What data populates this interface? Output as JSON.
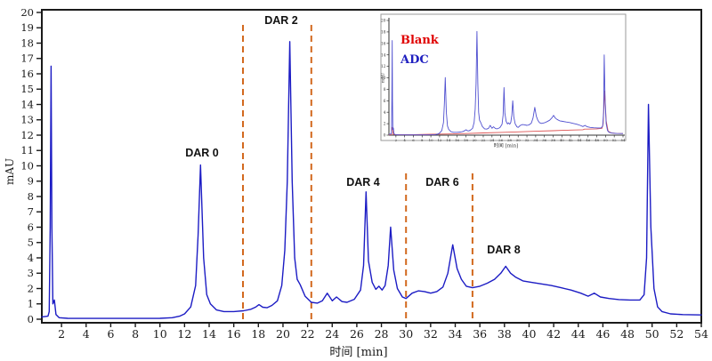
{
  "chart_data": {
    "type": "line",
    "title": "",
    "xlabel": "时间 [min]",
    "ylabel": "mAU",
    "xlim": [
      0.4,
      54
    ],
    "ylim": [
      0,
      20
    ],
    "grid": false,
    "x_ticks": [
      2,
      4,
      6,
      8,
      10,
      12,
      14,
      16,
      18,
      20,
      22,
      24,
      26,
      28,
      30,
      32,
      34,
      36,
      38,
      40,
      42,
      44,
      46,
      48,
      50,
      52,
      54
    ],
    "y_ticks": [
      0,
      1,
      2,
      3,
      4,
      5,
      6,
      7,
      8,
      9,
      10,
      11,
      12,
      13,
      14,
      15,
      16,
      17,
      18,
      19,
      20
    ],
    "frame_color": "#1a1a1a",
    "divider_lines": {
      "color": "#d2691e",
      "positions_min": [
        16.75,
        22.3,
        30.0,
        35.4
      ],
      "full_height": [
        true,
        true,
        false,
        false
      ]
    },
    "annotations": [
      {
        "label": "DAR 0",
        "t_min": 13.3,
        "peak_mau": 10.0
      },
      {
        "label": "DAR 2",
        "t_min": 20.55,
        "peak_mau": 18.1
      },
      {
        "label": "DAR 4",
        "t_min": 26.75,
        "peak_mau": 8.3
      },
      {
        "label": "DAR 6",
        "t_min": 33.8,
        "peak_mau": 4.85
      },
      {
        "label": "DAR 8",
        "t_min": 38.1,
        "peak_mau": 3.45
      }
    ],
    "series": [
      {
        "name": "ADC",
        "color": "#1c1cc4",
        "points": [
          [
            0.4,
            0.15
          ],
          [
            0.9,
            0.2
          ],
          [
            1.0,
            0.5
          ],
          [
            1.08,
            6.0
          ],
          [
            1.15,
            16.5
          ],
          [
            1.22,
            6.0
          ],
          [
            1.3,
            1.0
          ],
          [
            1.42,
            1.25
          ],
          [
            1.55,
            0.3
          ],
          [
            1.8,
            0.1
          ],
          [
            2.5,
            0.06
          ],
          [
            4,
            0.05
          ],
          [
            6,
            0.05
          ],
          [
            8,
            0.05
          ],
          [
            10,
            0.06
          ],
          [
            11,
            0.1
          ],
          [
            11.6,
            0.2
          ],
          [
            12.0,
            0.35
          ],
          [
            12.5,
            0.8
          ],
          [
            12.9,
            2.2
          ],
          [
            13.1,
            5.5
          ],
          [
            13.3,
            10.05
          ],
          [
            13.55,
            4.0
          ],
          [
            13.8,
            1.6
          ],
          [
            14.1,
            1.0
          ],
          [
            14.6,
            0.6
          ],
          [
            15.2,
            0.5
          ],
          [
            16.0,
            0.5
          ],
          [
            16.8,
            0.55
          ],
          [
            17.4,
            0.65
          ],
          [
            17.8,
            0.8
          ],
          [
            18.05,
            0.95
          ],
          [
            18.35,
            0.78
          ],
          [
            18.7,
            0.75
          ],
          [
            19.1,
            0.9
          ],
          [
            19.55,
            1.2
          ],
          [
            19.9,
            2.2
          ],
          [
            20.15,
            4.5
          ],
          [
            20.35,
            9.0
          ],
          [
            20.55,
            18.1
          ],
          [
            20.75,
            9.0
          ],
          [
            20.95,
            4.0
          ],
          [
            21.15,
            2.6
          ],
          [
            21.4,
            2.25
          ],
          [
            21.8,
            1.5
          ],
          [
            22.3,
            1.1
          ],
          [
            22.8,
            1.05
          ],
          [
            23.2,
            1.2
          ],
          [
            23.6,
            1.7
          ],
          [
            24.0,
            1.2
          ],
          [
            24.35,
            1.45
          ],
          [
            24.8,
            1.15
          ],
          [
            25.2,
            1.1
          ],
          [
            25.8,
            1.3
          ],
          [
            26.3,
            1.9
          ],
          [
            26.55,
            3.5
          ],
          [
            26.75,
            8.3
          ],
          [
            26.95,
            3.8
          ],
          [
            27.25,
            2.4
          ],
          [
            27.55,
            1.95
          ],
          [
            27.8,
            2.15
          ],
          [
            28.05,
            1.9
          ],
          [
            28.3,
            2.2
          ],
          [
            28.55,
            3.5
          ],
          [
            28.75,
            6.0
          ],
          [
            29.0,
            3.2
          ],
          [
            29.3,
            2.0
          ],
          [
            29.7,
            1.45
          ],
          [
            30.0,
            1.35
          ],
          [
            30.5,
            1.7
          ],
          [
            31.0,
            1.85
          ],
          [
            31.5,
            1.8
          ],
          [
            32.0,
            1.7
          ],
          [
            32.5,
            1.8
          ],
          [
            33.0,
            2.1
          ],
          [
            33.4,
            3.0
          ],
          [
            33.8,
            4.85
          ],
          [
            34.15,
            3.3
          ],
          [
            34.5,
            2.6
          ],
          [
            34.9,
            2.15
          ],
          [
            35.4,
            2.05
          ],
          [
            36.0,
            2.15
          ],
          [
            36.6,
            2.35
          ],
          [
            37.2,
            2.6
          ],
          [
            37.7,
            3.0
          ],
          [
            38.1,
            3.45
          ],
          [
            38.5,
            3.0
          ],
          [
            38.9,
            2.75
          ],
          [
            39.5,
            2.5
          ],
          [
            40.2,
            2.4
          ],
          [
            41.0,
            2.3
          ],
          [
            41.8,
            2.2
          ],
          [
            42.6,
            2.05
          ],
          [
            43.4,
            1.9
          ],
          [
            44.2,
            1.7
          ],
          [
            44.8,
            1.5
          ],
          [
            45.3,
            1.7
          ],
          [
            45.8,
            1.45
          ],
          [
            46.5,
            1.35
          ],
          [
            47.3,
            1.28
          ],
          [
            48.2,
            1.25
          ],
          [
            49.0,
            1.25
          ],
          [
            49.35,
            1.6
          ],
          [
            49.55,
            4.0
          ],
          [
            49.7,
            14.0
          ],
          [
            49.9,
            6.0
          ],
          [
            50.15,
            2.0
          ],
          [
            50.45,
            0.8
          ],
          [
            50.8,
            0.5
          ],
          [
            51.5,
            0.35
          ],
          [
            52.5,
            0.3
          ],
          [
            54.0,
            0.28
          ]
        ]
      }
    ],
    "inset": {
      "xlabel": "时间 [min]",
      "ylabel": "mAU",
      "xlim": [
        0.4,
        54
      ],
      "ylim": [
        0,
        20
      ],
      "x_ticks": [
        2,
        4,
        6,
        8,
        10,
        12,
        14,
        16,
        18,
        20,
        22,
        24,
        26,
        28,
        30,
        32,
        34,
        36,
        38,
        40,
        42,
        44,
        46,
        48,
        50,
        52,
        54
      ],
      "y_ticks": [
        0,
        2,
        4,
        6,
        8,
        10,
        12,
        14,
        16,
        18,
        20
      ],
      "legend": [
        {
          "label": "Blank",
          "color": "#e00000"
        },
        {
          "label": "ADC",
          "color": "#2020c0"
        }
      ],
      "series": [
        {
          "name": "Blank",
          "color": "#dd5555",
          "points": [
            [
              0.4,
              0.05
            ],
            [
              0.95,
              0.1
            ],
            [
              1.05,
              1.1
            ],
            [
              1.18,
              1.35
            ],
            [
              1.35,
              0.15
            ],
            [
              2,
              0.08
            ],
            [
              6,
              0.1
            ],
            [
              10,
              0.15
            ],
            [
              14,
              0.2
            ],
            [
              18,
              0.28
            ],
            [
              22,
              0.38
            ],
            [
              26,
              0.48
            ],
            [
              30,
              0.58
            ],
            [
              34,
              0.68
            ],
            [
              38,
              0.78
            ],
            [
              42,
              0.88
            ],
            [
              44.8,
              0.95
            ],
            [
              45.2,
              1.05
            ],
            [
              46,
              1.05
            ],
            [
              48,
              1.1
            ],
            [
              49.2,
              1.2
            ],
            [
              49.45,
              2.0
            ],
            [
              49.8,
              7.7
            ],
            [
              50.15,
              2.5
            ],
            [
              50.6,
              0.7
            ],
            [
              51.3,
              0.4
            ],
            [
              52.5,
              0.3
            ],
            [
              54,
              0.28
            ]
          ]
        },
        {
          "name": "ADC",
          "color": "#5050d0",
          "points": "main"
        }
      ]
    }
  }
}
